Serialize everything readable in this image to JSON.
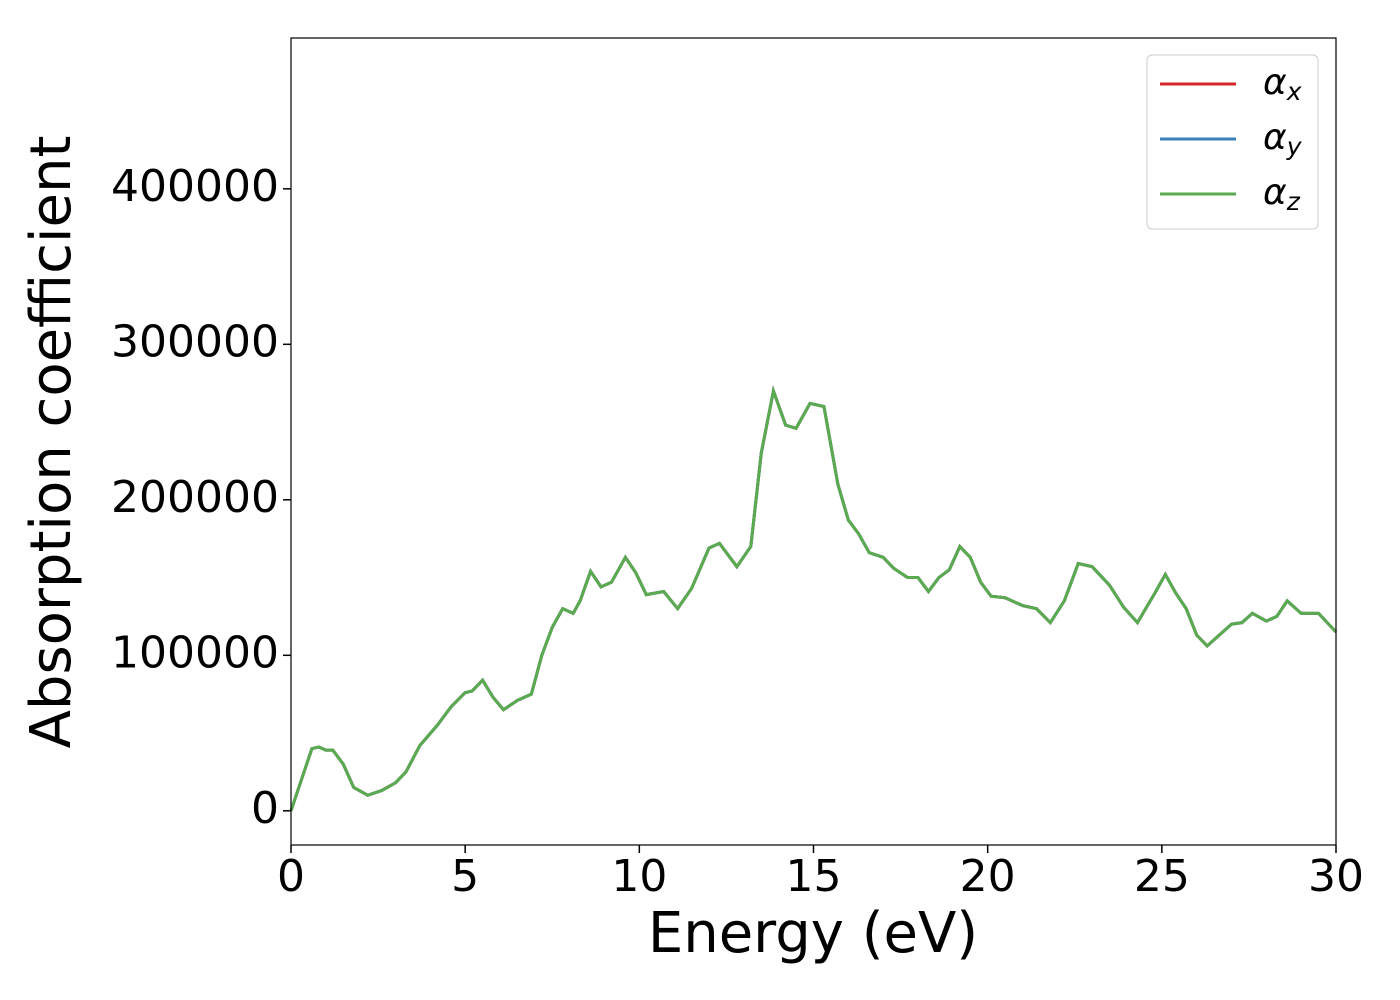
{
  "chart_data": {
    "type": "line",
    "xlabel": "Energy (eV)",
    "ylabel": "Absorption coefficient",
    "x": [
      0,
      0.3,
      0.6,
      0.8,
      1.0,
      1.2,
      1.5,
      1.8,
      2.2,
      2.6,
      3.0,
      3.3,
      3.7,
      4.2,
      4.6,
      5.0,
      5.2,
      5.5,
      5.8,
      6.1,
      6.5,
      6.9,
      7.2,
      7.5,
      7.8,
      8.1,
      8.3,
      8.6,
      8.9,
      9.2,
      9.6,
      9.9,
      10.2,
      10.7,
      11.1,
      11.5,
      12.0,
      12.3,
      12.8,
      13.2,
      13.5,
      13.85,
      14.2,
      14.5,
      14.9,
      15.3,
      15.7,
      16.0,
      16.3,
      16.6,
      17.0,
      17.3,
      17.7,
      18.0,
      18.3,
      18.6,
      18.9,
      19.2,
      19.5,
      19.8,
      20.1,
      20.5,
      21.0,
      21.4,
      21.8,
      22.2,
      22.6,
      23.0,
      23.5,
      23.9,
      24.3,
      24.8,
      25.1,
      25.4,
      25.7,
      26.0,
      26.3,
      26.7,
      27.0,
      27.3,
      27.6,
      28.0,
      28.3,
      28.6,
      29.0,
      29.5,
      30
    ],
    "series": [
      {
        "name": "αx",
        "color": "#d62728",
        "values": [
          0,
          20000,
          40000,
          41000,
          39000,
          39000,
          30000,
          15000,
          10000,
          13000,
          18000,
          25000,
          42000,
          55000,
          67000,
          76000,
          77000,
          84000,
          73000,
          65000,
          71000,
          75000,
          100000,
          118000,
          130000,
          127000,
          135000,
          154000,
          144000,
          147000,
          163000,
          153000,
          139000,
          141000,
          130000,
          143000,
          169000,
          172000,
          157000,
          170000,
          230000,
          270000,
          248000,
          246000,
          262000,
          260000,
          210000,
          187000,
          178000,
          166000,
          163000,
          156000,
          150000,
          150000,
          141000,
          150000,
          155000,
          170000,
          163000,
          147000,
          138000,
          137000,
          132000,
          130000,
          121000,
          135000,
          159000,
          157000,
          145000,
          131000,
          121000,
          140000,
          152000,
          140000,
          130000,
          113000,
          106000,
          114000,
          120000,
          121000,
          127000,
          122000,
          125000,
          135000,
          127000,
          127000,
          115000
        ]
      },
      {
        "name": "αy",
        "color": "#3a80b9",
        "values": [
          0,
          20000,
          40000,
          41000,
          39000,
          39000,
          30000,
          15000,
          10000,
          13000,
          18000,
          25000,
          42000,
          55000,
          67000,
          76000,
          77000,
          84000,
          73000,
          65000,
          71000,
          75000,
          100000,
          118000,
          130000,
          127000,
          135000,
          154000,
          144000,
          147000,
          163000,
          153000,
          139000,
          141000,
          130000,
          143000,
          169000,
          172000,
          157000,
          170000,
          230000,
          270000,
          248000,
          246000,
          262000,
          260000,
          210000,
          187000,
          178000,
          166000,
          163000,
          156000,
          150000,
          150000,
          141000,
          150000,
          155000,
          170000,
          163000,
          147000,
          138000,
          137000,
          132000,
          130000,
          121000,
          135000,
          159000,
          157000,
          145000,
          131000,
          121000,
          140000,
          152000,
          140000,
          130000,
          113000,
          106000,
          114000,
          120000,
          121000,
          127000,
          122000,
          125000,
          135000,
          127000,
          127000,
          115000
        ]
      },
      {
        "name": "αz",
        "color": "#5aaa50",
        "values": [
          0,
          20000,
          40000,
          41000,
          39000,
          39000,
          30000,
          15000,
          10000,
          13000,
          18000,
          25000,
          42000,
          55000,
          67000,
          76000,
          77000,
          84000,
          73000,
          65000,
          71000,
          75000,
          100000,
          118000,
          130000,
          127000,
          135000,
          154000,
          144000,
          147000,
          163000,
          153000,
          139000,
          141000,
          130000,
          143000,
          169000,
          172000,
          157000,
          170000,
          230000,
          270000,
          248000,
          246000,
          262000,
          260000,
          210000,
          187000,
          178000,
          166000,
          163000,
          156000,
          150000,
          150000,
          141000,
          150000,
          155000,
          170000,
          163000,
          147000,
          138000,
          137000,
          132000,
          130000,
          121000,
          135000,
          159000,
          157000,
          145000,
          131000,
          121000,
          140000,
          152000,
          140000,
          130000,
          113000,
          106000,
          114000,
          120000,
          121000,
          127000,
          122000,
          125000,
          135000,
          127000,
          127000,
          115000
        ]
      }
    ],
    "xlim": [
      0,
      30
    ],
    "xticks": [
      0,
      5,
      10,
      15,
      20,
      25,
      30
    ],
    "ylim": [
      -22000,
      497000
    ],
    "yticks": [
      0,
      100000,
      200000,
      300000,
      400000
    ],
    "legend": "upper right"
  }
}
